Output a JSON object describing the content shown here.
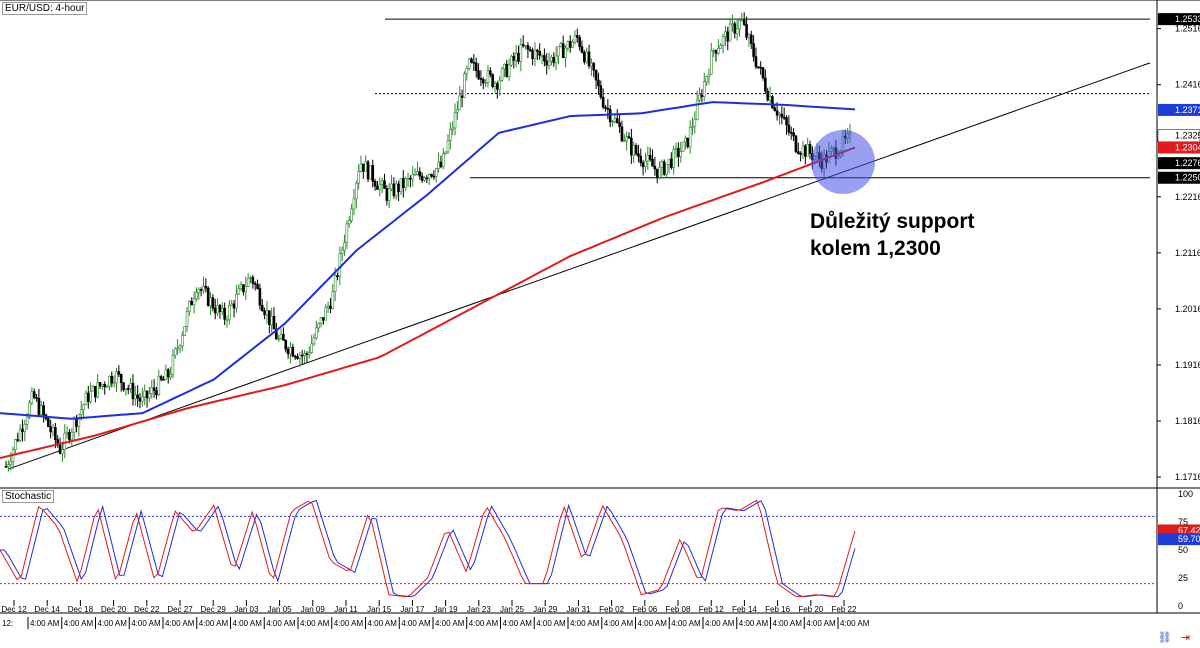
{
  "window": {
    "title": "EUR/USD: 4-hour"
  },
  "annotation": {
    "line1": "Důležitý support",
    "line2": "kolem 1,2300"
  },
  "oscillator": {
    "title": "Stochastic"
  },
  "icons": {
    "link": "link-icon",
    "arrow": "arrow-right-icon"
  },
  "chart_data": {
    "type": "line",
    "symbol": "EUR/USD",
    "timeframe": "4-hour",
    "price_axis": {
      "ticks": [
        "1.2516",
        "1.2416",
        "1.2316",
        "1.2216",
        "1.2116",
        "1.2016",
        "1.1916",
        "1.1816",
        "1.1716"
      ],
      "ylim": [
        1.17,
        1.256
      ]
    },
    "price_labels": [
      {
        "value": "1.2533",
        "bg": "#000000",
        "fg": "#ffffff"
      },
      {
        "value": "1.2371",
        "bg": "#1e3dd8",
        "fg": "#ffffff"
      },
      {
        "value": "1.2325",
        "bg": "#ffffff",
        "fg": "#000000"
      },
      {
        "value": "1.2304",
        "bg": "#e01b1b",
        "fg": "#ffffff"
      },
      {
        "value": "1.2276",
        "bg": "#000000",
        "fg": "#ffffff"
      },
      {
        "value": "1.2250",
        "bg": "#000000",
        "fg": "#ffffff"
      }
    ],
    "horizontal_lines": [
      {
        "value": 1.2533,
        "style": "solid"
      },
      {
        "value": 1.24,
        "style": "dotted"
      },
      {
        "value": 1.225,
        "style": "solid"
      }
    ],
    "x_date_labels": [
      "Dec 12",
      "Dec 14",
      "Dec 18",
      "Dec 20",
      "Dec 22",
      "Dec 27",
      "Dec 29",
      "Jan 03",
      "Jan 05",
      "Jan 09",
      "Jan 11",
      "Jan 15",
      "Jan 17",
      "Jan 19",
      "Jan 23",
      "Jan 25",
      "Jan 29",
      "Jan 31",
      "Feb 02",
      "Feb 06",
      "Feb 08",
      "Feb 12",
      "Feb 14",
      "Feb 16",
      "Feb 20",
      "Feb 22"
    ],
    "x_time_label": "4:00 AM",
    "x_first_time_label": "12:",
    "price_anchors": [
      1.1735,
      1.186,
      1.1765,
      1.186,
      1.19,
      1.185,
      1.19,
      1.206,
      1.2,
      1.2075,
      1.196,
      1.193,
      1.204,
      1.228,
      1.222,
      1.225,
      1.227,
      1.245,
      1.242,
      1.248,
      1.246,
      1.25,
      1.238,
      1.23,
      1.226,
      1.231,
      1.248,
      1.253,
      1.24,
      1.231,
      1.228,
      1.232
    ],
    "ma_blue_anchors": [
      1.183,
      1.182,
      1.183,
      1.189,
      1.199,
      1.212,
      1.222,
      1.233,
      1.236,
      1.2365,
      1.2385,
      1.238,
      1.2372
    ],
    "ma_red_anchors": [
      1.175,
      1.179,
      1.184,
      1.188,
      1.193,
      1.202,
      1.211,
      1.218,
      1.224,
      1.2304
    ],
    "trendline": {
      "from": 1.173,
      "to": 1.2455
    },
    "stochastic": {
      "levels": [
        80,
        20
      ],
      "scale_ticks": [
        "100",
        "75",
        "50",
        "25",
        "0"
      ],
      "k_label": {
        "value": "67.42",
        "bg": "#e01b1b"
      },
      "d_label": {
        "value": "59.70",
        "bg": "#1e3dd8"
      },
      "k_anchors": [
        50,
        20,
        90,
        70,
        20,
        90,
        20,
        85,
        20,
        85,
        65,
        90,
        30,
        85,
        20,
        85,
        95,
        40,
        30,
        85,
        10,
        8,
        25,
        70,
        30,
        90,
        60,
        20,
        20,
        90,
        40,
        90,
        60,
        10,
        15,
        60,
        20,
        88,
        85,
        95,
        20,
        8,
        10,
        8,
        67
      ]
    }
  }
}
